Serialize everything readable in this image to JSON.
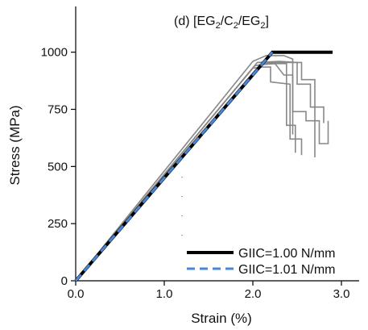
{
  "chart_data": {
    "type": "line",
    "title_parts": {
      "prefix": "(d) [EG",
      "sub1": "2",
      "mid1": "/C",
      "sub2": "2",
      "mid2": "/EG",
      "sub3": "2",
      "suffix": "]"
    },
    "xlabel": "Strain (%)",
    "ylabel": "Stress (MPa)",
    "xlim": [
      0,
      3.2
    ],
    "ylim": [
      0,
      1200
    ],
    "xticks": [
      0,
      1,
      2,
      3
    ],
    "xtick_labels": [
      "0.0",
      "1.0",
      "2.0",
      "3.0"
    ],
    "yticks": [
      0,
      250,
      500,
      750,
      1000
    ],
    "ytick_labels": [
      "0",
      "250",
      "500",
      "750",
      "1000"
    ],
    "grid": false,
    "legend_position": "bottom-right",
    "colors": {
      "experimental": "#888888",
      "giic_100": "#000000",
      "giic_101": "#4a86d8",
      "dotted_marker": "#555555"
    },
    "series": [
      {
        "name": "GIIC=1.00 N/mm",
        "style": "solid-thick",
        "color": "#000000",
        "points": [
          [
            0,
            0
          ],
          [
            2.22,
            1000
          ],
          [
            2.9,
            1000
          ]
        ]
      },
      {
        "name": "GIIC=1.01 N/mm",
        "style": "dashed",
        "color": "#4a86d8",
        "points": [
          [
            0,
            0
          ],
          [
            2.22,
            1000
          ]
        ]
      }
    ],
    "experimental_curves": [
      [
        [
          0,
          0
        ],
        [
          2.0,
          960
        ],
        [
          2.15,
          985
        ],
        [
          2.35,
          985
        ],
        [
          2.45,
          970
        ],
        [
          2.45,
          740
        ],
        [
          2.6,
          740
        ],
        [
          2.6,
          700
        ],
        [
          2.75,
          700
        ],
        [
          2.75,
          600
        ],
        [
          2.85,
          600
        ],
        [
          2.85,
          700
        ]
      ],
      [
        [
          0,
          0
        ],
        [
          2.05,
          955
        ],
        [
          2.3,
          960
        ],
        [
          2.5,
          955
        ],
        [
          2.5,
          860
        ],
        [
          2.65,
          860
        ],
        [
          2.65,
          760
        ],
        [
          2.8,
          760
        ],
        [
          2.8,
          690
        ]
      ],
      [
        [
          0,
          0
        ],
        [
          2.1,
          950
        ],
        [
          2.3,
          950
        ],
        [
          2.38,
          950
        ],
        [
          2.38,
          680
        ],
        [
          2.48,
          680
        ],
        [
          2.48,
          560
        ]
      ],
      [
        [
          0,
          0
        ],
        [
          2.08,
          945
        ],
        [
          2.25,
          950
        ],
        [
          2.35,
          900
        ],
        [
          2.45,
          900
        ],
        [
          2.45,
          640
        ]
      ],
      [
        [
          0,
          0
        ],
        [
          2.02,
          940
        ],
        [
          2.18,
          955
        ],
        [
          2.55,
          955
        ],
        [
          2.55,
          880
        ],
        [
          2.7,
          880
        ],
        [
          2.7,
          540
        ]
      ],
      [
        [
          0,
          0
        ],
        [
          2.0,
          930
        ],
        [
          2.1,
          935
        ],
        [
          2.2,
          935
        ],
        [
          2.2,
          870
        ],
        [
          2.42,
          860
        ],
        [
          2.42,
          620
        ],
        [
          2.55,
          620
        ],
        [
          2.55,
          550
        ]
      ]
    ],
    "dotted_marker_x": 1.2
  }
}
